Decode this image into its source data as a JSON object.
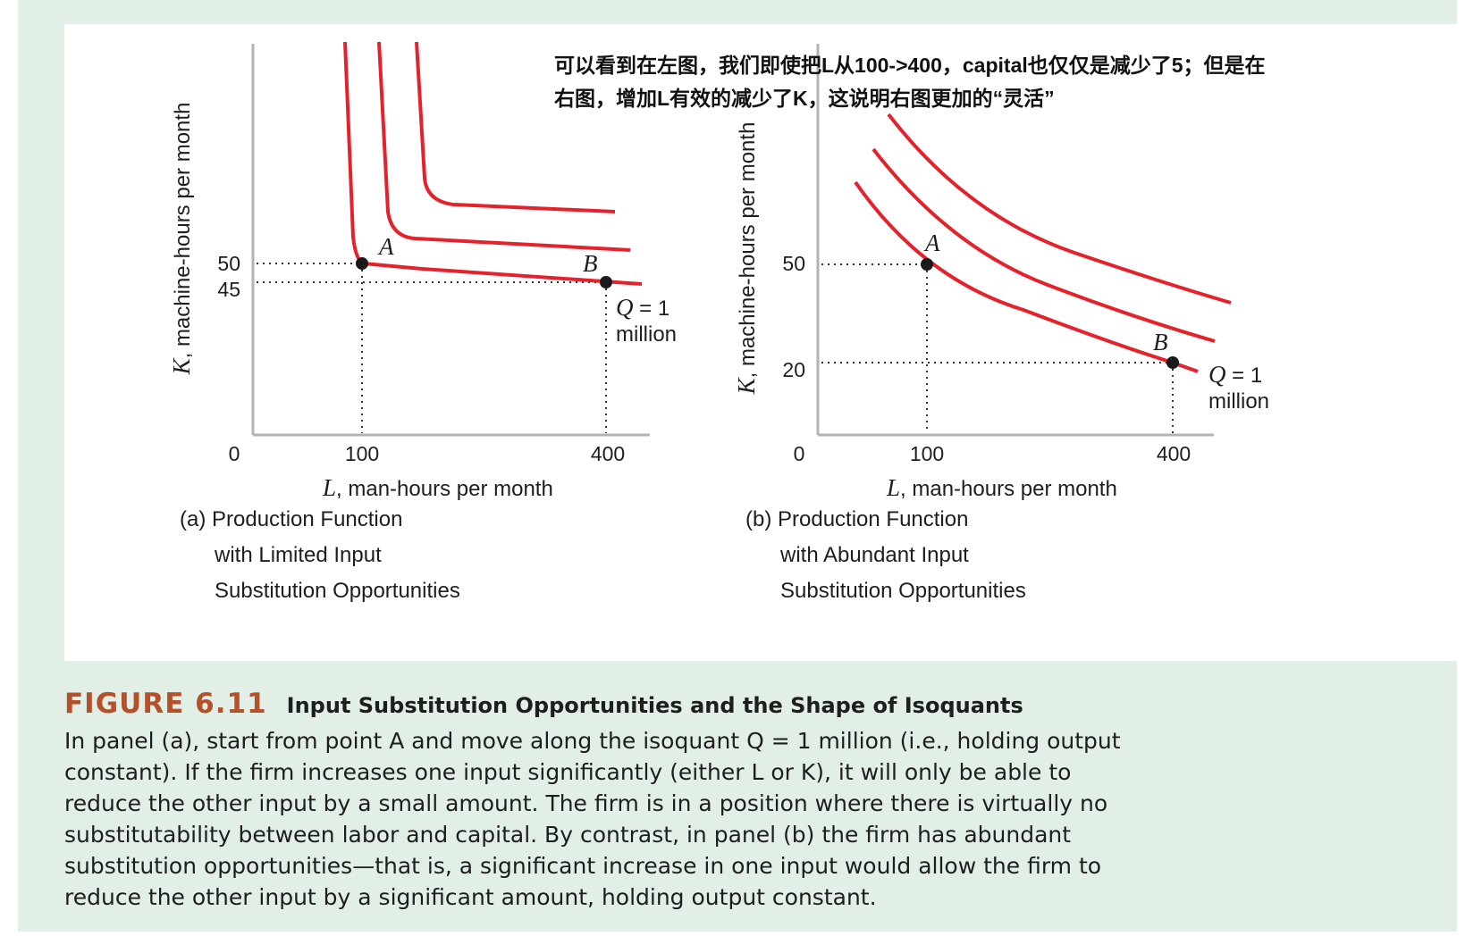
{
  "colors": {
    "curve": "#e5222b",
    "frame_bg": "#e2efe6",
    "figure_number": "#b4512a",
    "point": "#1a1a1a"
  },
  "annotation": {
    "line1": "可以看到在左图，我们即使把L从100->400，capital也仅仅是减少了5；但是在",
    "line2": "右图，增加L有效的减少了K，这说明右图更加的“灵活”"
  },
  "chart_data": [
    {
      "type": "line",
      "panel_label": "(a) Production Function",
      "caption_lines": [
        "(a) Production Function",
        "with Limited Input",
        "Substitution Opportunities"
      ],
      "xlabel": "L, man-hours per month",
      "xlabel_var": "L",
      "xlabel_rest": ", man-hours per month",
      "ylabel": "K, machine-hours per month",
      "ylabel_var": "K",
      "ylabel_rest": ", machine-hours per month",
      "x_ticks": [
        "0",
        "100",
        "400"
      ],
      "y_ticks": [
        "50",
        "45"
      ],
      "points": [
        {
          "label": "A",
          "x": 100,
          "y": 50
        },
        {
          "label": "B",
          "x": 400,
          "y": 45
        }
      ],
      "isoquant_label": {
        "q": "Q",
        "rest": " = 1",
        "line2": "million"
      },
      "series": [
        {
          "values": [
            [
              100,
              50
            ],
            [
              400,
              45
            ]
          ]
        },
        {},
        {}
      ]
    },
    {
      "type": "line",
      "panel_label": "(b) Production Function",
      "caption_lines": [
        "(b) Production Function",
        "with Abundant Input",
        "Substitution Opportunities"
      ],
      "xlabel": "L, man-hours per month",
      "xlabel_var": "L",
      "xlabel_rest": ", man-hours per month",
      "ylabel": "K, machine-hours per month",
      "ylabel_var": "K",
      "ylabel_rest": ", machine-hours per month",
      "x_ticks": [
        "0",
        "100",
        "400"
      ],
      "y_ticks": [
        "50",
        "20"
      ],
      "points": [
        {
          "label": "A",
          "x": 100,
          "y": 50
        },
        {
          "label": "B",
          "x": 400,
          "y": 20
        }
      ],
      "isoquant_label": {
        "q": "Q",
        "rest": " = 1",
        "line2": "million"
      },
      "series": [
        {
          "values": [
            [
              100,
              50
            ],
            [
              400,
              20
            ]
          ]
        },
        {},
        {}
      ]
    }
  ],
  "caption": {
    "number": "FIGURE 6.11",
    "title": "Input Substitution Opportunities and the Shape of Isoquants",
    "body": "In panel (a), start from point A and move along the isoquant Q = 1 million (i.e., holding output\nconstant). If the firm increases one input significantly (either L or K), it will only be able to\nreduce the other input by a small amount. The firm is in a position where there is virtually no\nsubstitutability between labor and capital. By contrast, in panel (b) the firm has abundant\nsubstitution opportunities—that is, a significant increase in one input would allow the firm to\nreduce the other input by a significant amount, holding output constant."
  }
}
